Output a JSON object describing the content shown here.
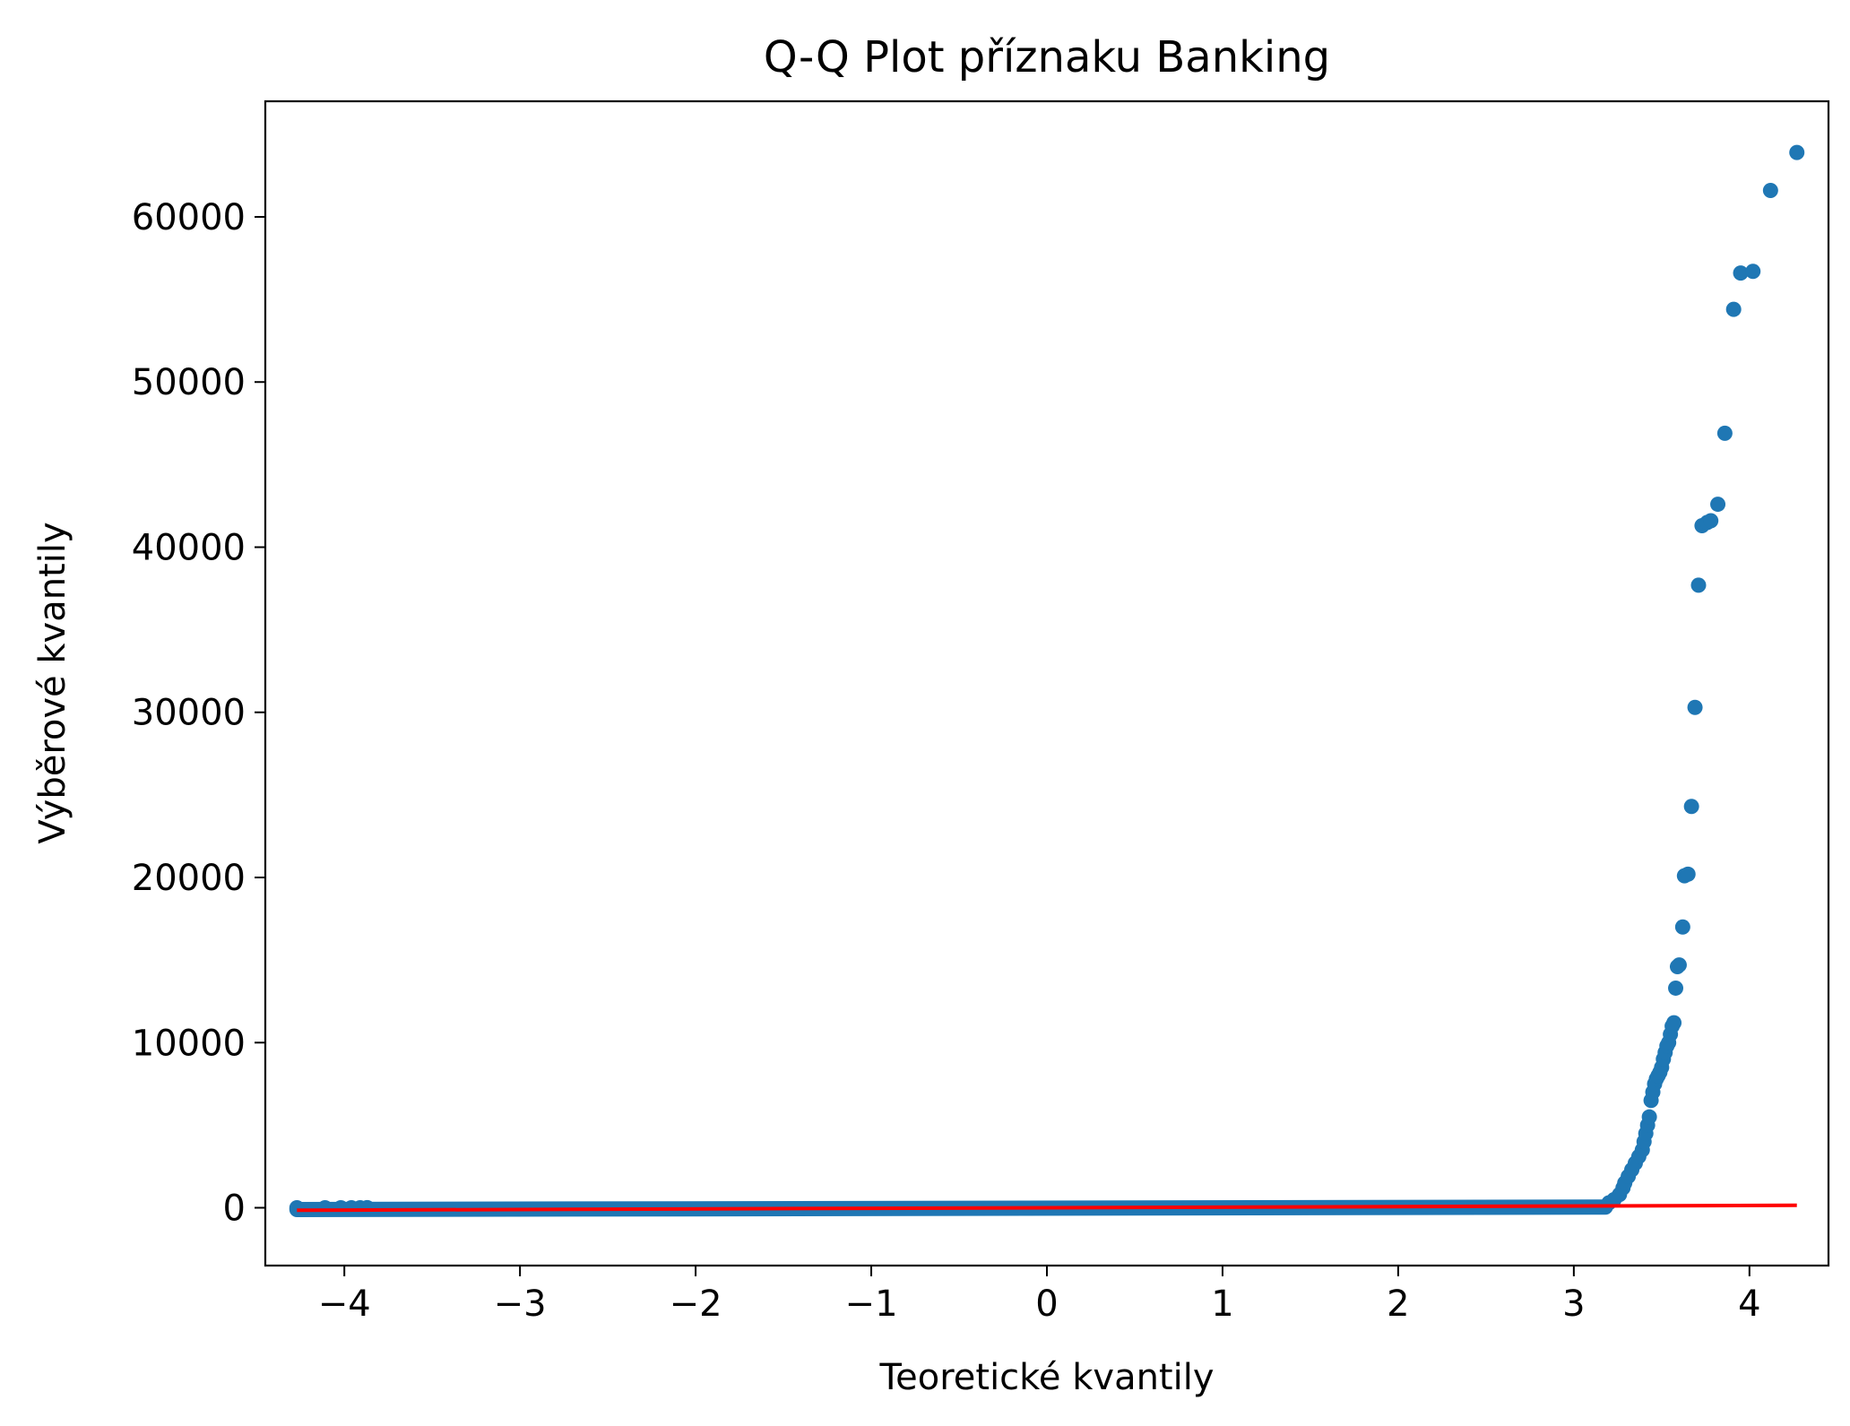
{
  "chart_data": {
    "type": "scatter",
    "title": "Q-Q Plot příznaku Banking",
    "xlabel": "Teoretické kvantily",
    "ylabel": "Výběrové kvantily",
    "xlim": [
      -4.45,
      4.45
    ],
    "ylim": [
      -3500,
      67000
    ],
    "x_ticks": [
      -4,
      -3,
      -2,
      -1,
      0,
      1,
      2,
      3,
      4
    ],
    "x_tick_labels": [
      "−4",
      "−3",
      "−2",
      "−1",
      "0",
      "1",
      "2",
      "3",
      "4"
    ],
    "y_ticks": [
      0,
      10000,
      20000,
      30000,
      40000,
      50000,
      60000
    ],
    "y_tick_labels": [
      "0",
      "10000",
      "20000",
      "30000",
      "40000",
      "50000",
      "60000"
    ],
    "grid": false,
    "colors": {
      "points": "#1f77b4",
      "line": "#ff0000"
    },
    "bulk": {
      "x_from": -4.27,
      "x_to": 3.18,
      "y_from": 0,
      "y_to": 150
    },
    "series": [
      {
        "kind": "points",
        "x": [
          -4.27,
          -4.11,
          -4.02,
          -3.96,
          -3.91,
          -3.87,
          3.2,
          3.23,
          3.26,
          3.28,
          3.29,
          3.31,
          3.33,
          3.35,
          3.37,
          3.39,
          3.4,
          3.41,
          3.42,
          3.43,
          3.44,
          3.45,
          3.46,
          3.47,
          3.48,
          3.49,
          3.5,
          3.51,
          3.52,
          3.53,
          3.54,
          3.55,
          3.56,
          3.57,
          3.58,
          3.59,
          3.6,
          3.62,
          3.63,
          3.65,
          3.67,
          3.69,
          3.71,
          3.73,
          3.76,
          3.78,
          3.82,
          3.86,
          3.91,
          3.95,
          4.02,
          4.12,
          4.27
        ],
        "y": [
          0,
          0,
          0,
          0,
          0,
          10,
          300,
          500,
          800,
          1200,
          1500,
          1900,
          2300,
          2700,
          3100,
          3500,
          4000,
          4500,
          5000,
          5500,
          6500,
          7000,
          7500,
          7800,
          8000,
          8200,
          8500,
          9000,
          9400,
          9800,
          10000,
          10500,
          11000,
          11200,
          13300,
          14600,
          14700,
          17000,
          20100,
          20200,
          24300,
          30300,
          37700,
          41300,
          41500,
          41600,
          42600,
          46900,
          54400,
          56600,
          56700,
          61600,
          63900
        ]
      },
      {
        "kind": "line",
        "x": [
          -4.27,
          4.27
        ],
        "y": [
          -150,
          150
        ]
      }
    ]
  }
}
